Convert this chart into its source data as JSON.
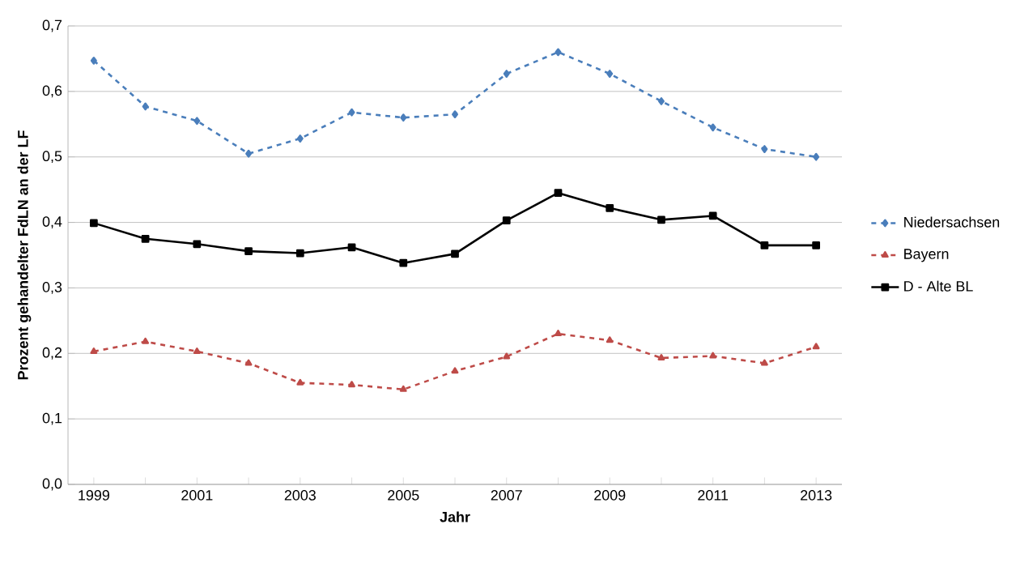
{
  "chart_data": {
    "type": "line",
    "xlabel": "Jahr",
    "ylabel": "Prozent gehandelter FdLN an der LF",
    "categories": [
      "1999",
      null,
      "2001",
      null,
      "2003",
      null,
      "2005",
      null,
      "2007",
      null,
      "2009",
      null,
      "2011",
      null,
      "2013"
    ],
    "series": [
      {
        "name": "Niedersachsen",
        "color": "#4a7ebb",
        "marker": "diamond",
        "line_style": "dashed",
        "values": [
          0.647,
          0.577,
          0.555,
          0.505,
          0.528,
          0.568,
          0.56,
          0.565,
          0.627,
          0.66,
          0.627,
          0.585,
          0.545,
          0.512,
          0.5
        ]
      },
      {
        "name": "Bayern",
        "color": "#be4b48",
        "marker": "triangle",
        "line_style": "dashed",
        "values": [
          0.203,
          0.218,
          0.203,
          0.185,
          0.155,
          0.152,
          0.145,
          0.173,
          0.195,
          0.23,
          0.22,
          0.193,
          0.196,
          0.185,
          0.21
        ]
      },
      {
        "name": "D - Alte BL",
        "color": "#000000",
        "marker": "square",
        "line_style": "solid",
        "values": [
          0.399,
          0.375,
          0.367,
          0.356,
          0.353,
          0.362,
          0.338,
          0.352,
          0.403,
          0.445,
          0.422,
          0.404,
          0.41,
          0.365,
          0.365
        ]
      }
    ],
    "ylim": [
      0,
      0.7
    ],
    "yticks": [
      {
        "value": 0,
        "label": "0,0"
      },
      {
        "value": 0.1,
        "label": "0,1"
      },
      {
        "value": 0.2,
        "label": "0,2"
      },
      {
        "value": 0.3,
        "label": "0,3"
      },
      {
        "value": 0.4,
        "label": "0,4"
      },
      {
        "value": 0.5,
        "label": "0,5"
      },
      {
        "value": 0.6,
        "label": "0,6"
      },
      {
        "value": 0.7,
        "label": "0,7"
      }
    ],
    "grid": "y",
    "legend": "right"
  }
}
